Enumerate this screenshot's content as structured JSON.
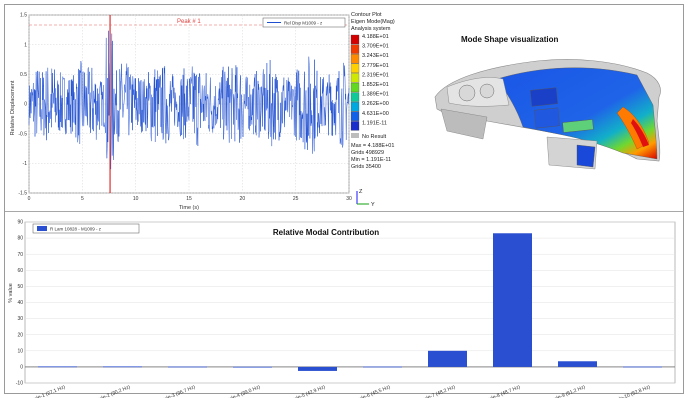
{
  "time_plot": {
    "ylabel": "Relative Displacement",
    "xlabel": "Time (s)",
    "x_ticks": [
      "0",
      "5",
      "10",
      "15",
      "20",
      "25",
      "30"
    ],
    "y_ticks": [
      "1.5",
      "1",
      "0.5",
      "0",
      "-0.5",
      "-1",
      "-1.5"
    ],
    "legend": "Rel Disp M1009 - z",
    "peak_label": "Peak # 1",
    "trace_color": "#1f4fd1",
    "marker_color": "#e03030"
  },
  "contour": {
    "header": [
      "Contour Plot",
      "Eigen Mode(Mag)",
      "Analysis system"
    ],
    "levels": [
      "4.188E+01",
      "3.709E+01",
      "3.243E+01",
      "2.779E+01",
      "2.319E+01",
      "1.852E+01",
      "1.389E+01",
      "9.262E+00",
      "4.631E+00",
      "1.191E-11"
    ],
    "level_colors": [
      "#d40000",
      "#f03a00",
      "#ff8a00",
      "#ffd000",
      "#cfe800",
      "#63d820",
      "#10c898",
      "#00a8e0",
      "#1060e8",
      "#1a2ecc"
    ],
    "no_result": "No Result",
    "stats": [
      "Max = 4.188E+01",
      "Grids 498929",
      "Min = 1.191E-11",
      "Grids 35400"
    ],
    "title": "Mode Shape visualization",
    "axis_labels": {
      "y": "Y",
      "z": "Z"
    }
  },
  "chart_data": {
    "type": "bar",
    "title": "Relative Modal Contribution",
    "ylabel": "% value",
    "legend": "R Lam 10828 - M1009 - z",
    "categories": [
      "Mode-1 (27.1 Hz)",
      "Mode-2 (30.2 Hz)",
      "Mode-3 (36.7 Hz)",
      "Mode-4 (39.0 Hz)",
      "Mode-5 (42.9 Hz)",
      "Mode-6 (45.5 Hz)",
      "Mode-7 (48.2 Hz)",
      "Mode-8 (48.7 Hz)",
      "Mode-9 (51.2 Hz)",
      "Mode-10 (52.8 Hz)"
    ],
    "values": [
      0.3,
      0.3,
      0.2,
      0.1,
      -2.5,
      0.2,
      10,
      83,
      3.5,
      0.2
    ],
    "ylim": [
      -10,
      90
    ],
    "y_ticks": [
      "90",
      "80",
      "70",
      "60",
      "50",
      "40",
      "30",
      "20",
      "10",
      "0",
      "-10"
    ],
    "grid": true,
    "legend_position": "top-left",
    "bar_color": "#2a4fd0"
  }
}
